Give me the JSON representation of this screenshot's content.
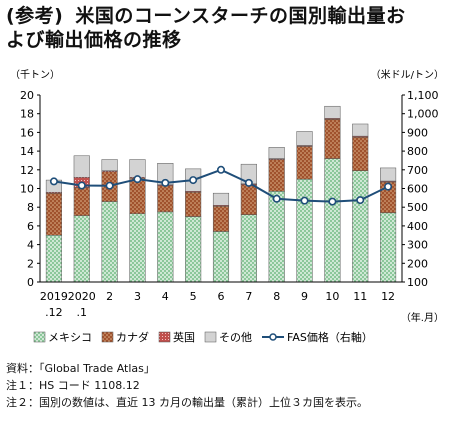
{
  "title": {
    "label": "(参考)",
    "line1": "米国のコーンスターチの国別輸出量お",
    "line2": "よび輸出価格の推移"
  },
  "notes": [
    "資料：「Global Trade Atlas」",
    "注１：HS コード 1108.12",
    "注２：国別の数値は、直近 13 カ月の輸出量（累計）上位３カ国を表示。"
  ],
  "chart_data": {
    "type": "bar",
    "stacked": true,
    "left_unit": "（千トン）",
    "right_unit": "（米ドル/トン）",
    "x_unit": "（年.月）",
    "categories": [
      [
        "2019",
        ".12"
      ],
      [
        "2020",
        ".1"
      ],
      [
        "2"
      ],
      [
        "3"
      ],
      [
        "4"
      ],
      [
        "5"
      ],
      [
        "6"
      ],
      [
        "7"
      ],
      [
        "8"
      ],
      [
        "9"
      ],
      [
        "10"
      ],
      [
        "11"
      ],
      [
        "12"
      ]
    ],
    "yleft": {
      "min": 0,
      "max": 20,
      "step": 2,
      "ticks": [
        "0",
        "2",
        "4",
        "6",
        "8",
        "10",
        "12",
        "14",
        "16",
        "18",
        "20"
      ]
    },
    "yright": {
      "min": 100,
      "max": 1100,
      "step": 100,
      "ticks": [
        "100",
        "200",
        "300",
        "400",
        "500",
        "600",
        "700",
        "800",
        "900",
        "1,000",
        "1,100"
      ]
    },
    "series": [
      {
        "name": "メキシコ",
        "color": "#7fc08a",
        "pattern": "dots-green",
        "values": [
          5.0,
          7.1,
          8.6,
          7.3,
          7.5,
          7.0,
          5.4,
          7.2,
          9.7,
          11.0,
          13.2,
          11.9,
          7.4
        ]
      },
      {
        "name": "カナダ",
        "color": "#a0522d",
        "pattern": "dots-brown",
        "values": [
          4.5,
          3.0,
          3.2,
          3.8,
          2.8,
          2.6,
          2.7,
          3.2,
          3.4,
          3.5,
          4.2,
          3.6,
          3.3
        ]
      },
      {
        "name": "英国",
        "color": "#c0504d",
        "pattern": "grid-red",
        "values": [
          0.1,
          1.1,
          0.1,
          0.1,
          0.1,
          0.1,
          0.1,
          0.1,
          0.1,
          0.1,
          0.1,
          0.1,
          0.1
        ]
      },
      {
        "name": "その他",
        "color": "#d3d3d3",
        "pattern": "solid-gray",
        "values": [
          1.3,
          2.3,
          1.2,
          1.9,
          2.3,
          2.4,
          1.3,
          2.1,
          1.2,
          1.5,
          1.3,
          1.3,
          1.4
        ]
      }
    ],
    "line": {
      "name": "FAS価格（右軸）",
      "color": "#1f4e79",
      "values": [
        638,
        616,
        615,
        650,
        630,
        645,
        700,
        630,
        545,
        535,
        530,
        538,
        610
      ]
    },
    "grid": false,
    "legend_position": "bottom"
  }
}
